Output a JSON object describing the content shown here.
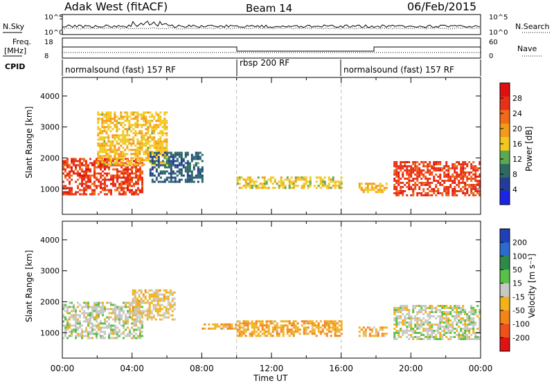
{
  "header": {
    "station": "Adak West (fitACF)",
    "beam": "Beam 14",
    "date": "06/Feb/2015"
  },
  "panels": {
    "nsky": {
      "left_label": "N.Sky",
      "right_label": "N.Search",
      "left_ticks": [
        "10^5",
        "10^0"
      ],
      "right_ticks": [
        "10^5",
        "10^0"
      ]
    },
    "freq": {
      "left_label_1": "Freq.",
      "left_label_2": "[MHz]",
      "right_label": "Nave",
      "left_ticks": [
        "18",
        "8"
      ],
      "right_ticks": [
        "60",
        "0"
      ]
    },
    "cpid": {
      "label": "CPID",
      "segments": [
        {
          "text": "normalsound (fast) 157 RF",
          "start_hour": 0
        },
        {
          "text": "rbsp 200 RF",
          "start_hour": 10
        },
        {
          "text": "normalsound (fast) 157 RF",
          "start_hour": 16
        }
      ]
    }
  },
  "axes": {
    "ylabel": "Slant Range [km]",
    "yticks": [
      "1000",
      "2000",
      "3000",
      "4000"
    ],
    "xlabel": "Time UT",
    "xticks": [
      "00:00",
      "04:00",
      "08:00",
      "12:00",
      "16:00",
      "20:00",
      "00:00"
    ]
  },
  "colorbars": {
    "power": {
      "label": "Power [dB]",
      "ticks": [
        "4",
        "8",
        "12",
        "16",
        "20",
        "24",
        "28"
      ],
      "colors": [
        "#1a24e6",
        "#243c98",
        "#2e6a62",
        "#5ca850",
        "#f2c81c",
        "#f39a18",
        "#f06a1a",
        "#e83018",
        "#e01010"
      ]
    },
    "velocity": {
      "label": "Velocity [m s⁻¹]",
      "ticks": [
        "200",
        "100",
        "50",
        "15",
        "-15",
        "-50",
        "-100",
        "-200"
      ],
      "colors": [
        "#2040b8",
        "#2c6ad0",
        "#2e8a48",
        "#58c248",
        "#c8c8c4",
        "#f2b21a",
        "#f4841a",
        "#f0501a",
        "#e01212"
      ]
    }
  },
  "chart_data": [
    {
      "type": "heatmap",
      "title": "Power",
      "x_label": "Time UT",
      "y_label": "Slant Range [km]",
      "x_range_hours": [
        0,
        24
      ],
      "y_range_km": [
        180,
        4600
      ],
      "z_label": "Power [dB]",
      "z_range": [
        0,
        32
      ],
      "echo_regions": [
        {
          "t_start": 0.0,
          "t_end": 4.6,
          "r_low": 800,
          "r_high": 2000,
          "value": 26
        },
        {
          "t_start": 2.0,
          "t_end": 6.0,
          "r_low": 1800,
          "r_high": 3500,
          "value": 17
        },
        {
          "t_start": 5.0,
          "t_end": 8.0,
          "r_low": 1200,
          "r_high": 2200,
          "value": 8
        },
        {
          "t_start": 10.0,
          "t_end": 16.0,
          "r_low": 1000,
          "r_high": 1400,
          "value": 16
        },
        {
          "t_start": 17.0,
          "t_end": 18.6,
          "r_low": 900,
          "r_high": 1200,
          "value": 18
        },
        {
          "t_start": 19.0,
          "t_end": 24.0,
          "r_low": 800,
          "r_high": 1900,
          "value": 26
        }
      ]
    },
    {
      "type": "heatmap",
      "title": "Velocity",
      "x_label": "Time UT",
      "y_label": "Slant Range [km]",
      "x_range_hours": [
        0,
        24
      ],
      "y_range_km": [
        180,
        4600
      ],
      "z_label": "Velocity [m s⁻¹]",
      "z_range": [
        -250,
        250
      ],
      "echo_regions": [
        {
          "t_start": 0.0,
          "t_end": 4.6,
          "r_low": 800,
          "r_high": 2000,
          "value": 0
        },
        {
          "t_start": 4.0,
          "t_end": 6.5,
          "r_low": 1400,
          "r_high": 2400,
          "value": -40
        },
        {
          "t_start": 8.0,
          "t_end": 10.0,
          "r_low": 1150,
          "r_high": 1300,
          "value": -60
        },
        {
          "t_start": 10.0,
          "t_end": 16.0,
          "r_low": 900,
          "r_high": 1400,
          "value": -70
        },
        {
          "t_start": 17.0,
          "t_end": 18.6,
          "r_low": 900,
          "r_high": 1200,
          "value": -60
        },
        {
          "t_start": 19.0,
          "t_end": 24.0,
          "r_low": 800,
          "r_high": 1900,
          "value": 0
        }
      ]
    }
  ]
}
